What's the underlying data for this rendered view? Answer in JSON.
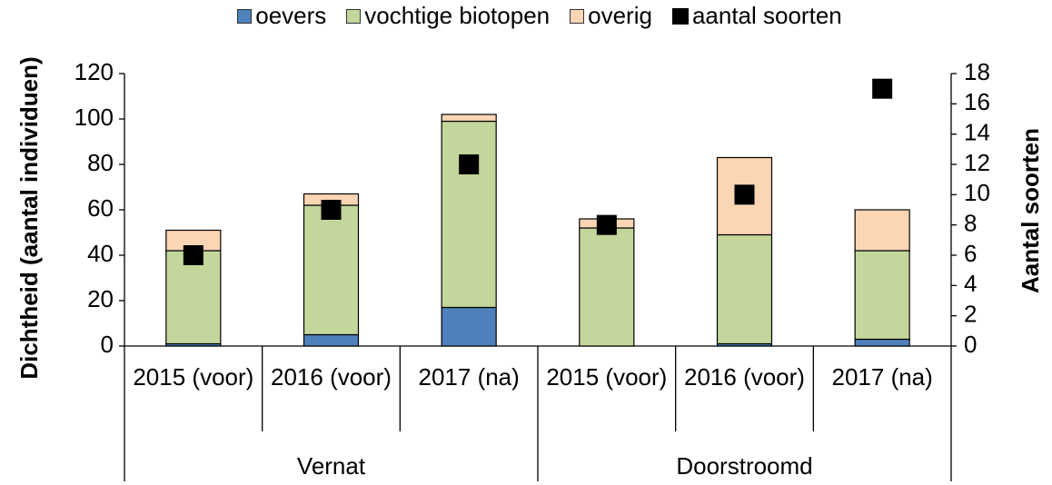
{
  "chart_data": {
    "type": "bar",
    "stacked": true,
    "categories": [
      "2015 (voor)",
      "2016 (voor)",
      "2017 (na)",
      "2015 (voor)",
      "2016 (voor)",
      "2017 (na)"
    ],
    "groups": [
      "Vernat",
      "Doorstroomd"
    ],
    "series": [
      {
        "name": "oevers",
        "color": "#4f81bd",
        "values": [
          1,
          5,
          17,
          0,
          1,
          3
        ]
      },
      {
        "name": "vochtige biotopen",
        "color": "#c3d69b",
        "values": [
          41,
          57,
          82,
          52,
          48,
          39
        ]
      },
      {
        "name": "overig",
        "color": "#fcd5b5",
        "values": [
          9,
          5,
          3,
          4,
          34,
          18
        ]
      },
      {
        "name": "aantal soorten",
        "type": "scatter",
        "axis": "y2",
        "color": "#000000",
        "values": [
          6,
          9,
          12,
          8,
          10,
          17
        ]
      }
    ],
    "ylabel": "Dichtheid (aantal individuen)",
    "y2label": "Aantal soorten",
    "ylim": [
      0,
      120
    ],
    "yticks": [
      0,
      20,
      40,
      60,
      80,
      100,
      120
    ],
    "y2lim": [
      0,
      18
    ],
    "y2ticks": [
      0,
      2,
      4,
      6,
      8,
      10,
      12,
      14,
      16,
      18
    ],
    "legend": "top"
  }
}
